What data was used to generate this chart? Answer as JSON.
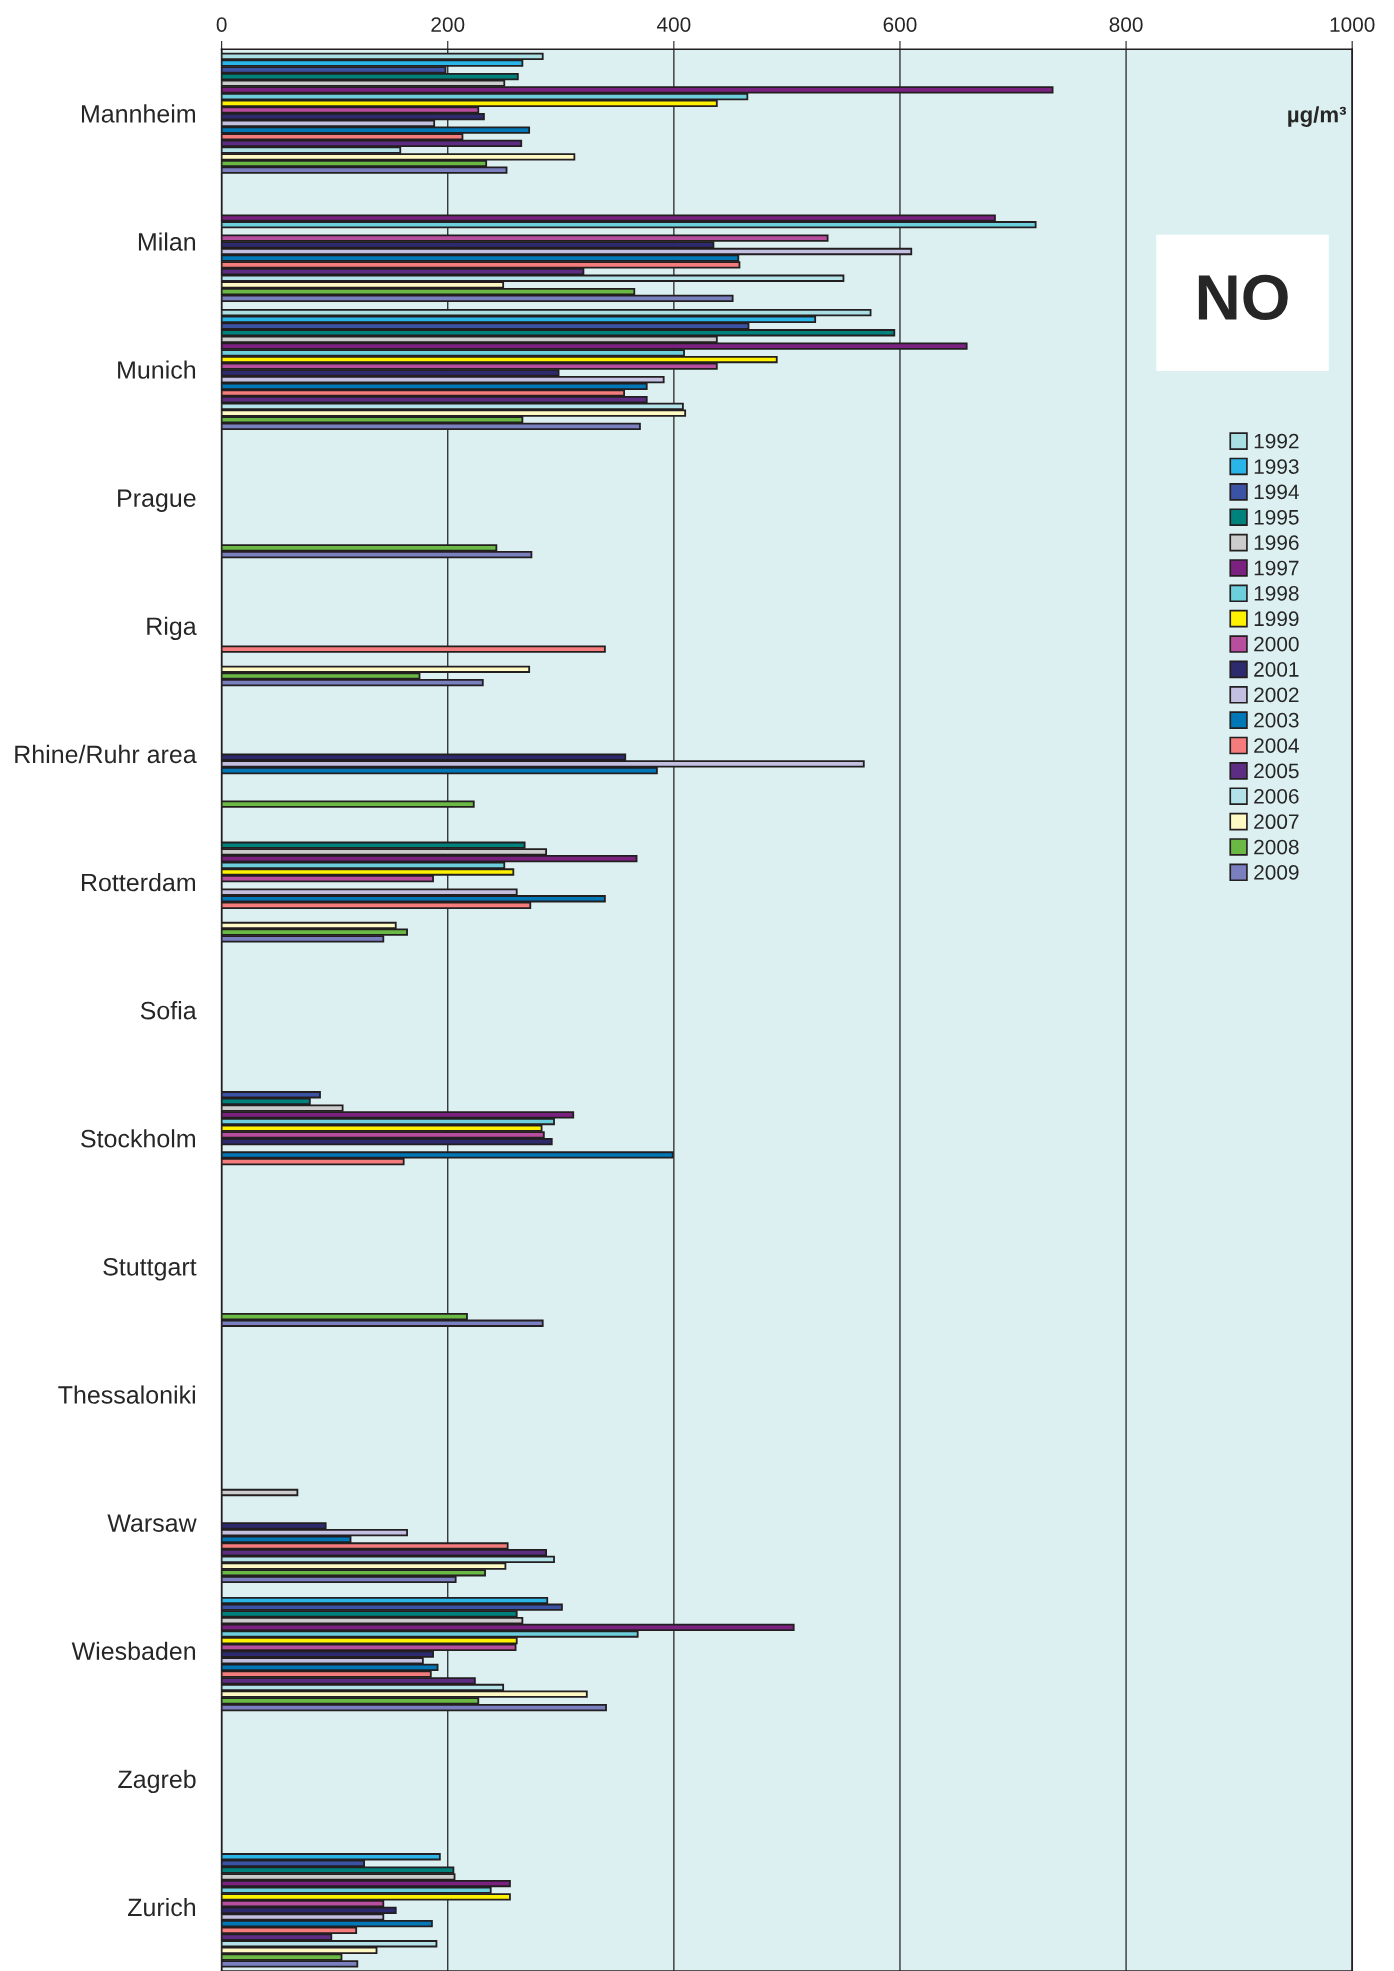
{
  "chart_data": {
    "type": "bar",
    "orientation": "horizontal",
    "title": "NO",
    "xlabel": "µg/m³",
    "categories": [
      "Mannheim",
      "Milan",
      "Munich",
      "Prague",
      "Riga",
      "Rhine/Ruhr area",
      "Rotterdam",
      "Sofia",
      "Stockholm",
      "Stuttgart",
      "Thessaloniki",
      "Warsaw",
      "Wiesbaden",
      "Zagreb",
      "Zurich"
    ],
    "xlim": [
      0,
      1000
    ],
    "xticks": [
      0,
      200,
      400,
      600,
      800,
      1000
    ],
    "grid": "x",
    "legend": "right",
    "series": [
      {
        "name": "1992",
        "color": "#a9dfe3",
        "values": [
          284,
          null,
          574,
          null,
          null,
          null,
          null,
          null,
          null,
          null,
          null,
          null,
          null,
          null,
          null
        ]
      },
      {
        "name": "1993",
        "color": "#29b5e8",
        "values": [
          266,
          null,
          525,
          null,
          null,
          null,
          null,
          null,
          null,
          null,
          null,
          null,
          288,
          null,
          193
        ]
      },
      {
        "name": "1994",
        "color": "#3a53a4",
        "values": [
          198,
          null,
          466,
          null,
          null,
          null,
          null,
          null,
          87,
          null,
          null,
          null,
          301,
          null,
          126
        ]
      },
      {
        "name": "1995",
        "color": "#00827c",
        "values": [
          262,
          null,
          595,
          null,
          null,
          null,
          268,
          null,
          78,
          null,
          null,
          null,
          261,
          null,
          205
        ]
      },
      {
        "name": "1996",
        "color": "#cccccc",
        "values": [
          250,
          null,
          438,
          null,
          null,
          null,
          287,
          null,
          107,
          null,
          null,
          67,
          266,
          null,
          206
        ]
      },
      {
        "name": "1997",
        "color": "#7b2281",
        "values": [
          735,
          684,
          659,
          null,
          null,
          null,
          367,
          null,
          311,
          null,
          null,
          null,
          506,
          null,
          255
        ]
      },
      {
        "name": "1998",
        "color": "#6ecfdc",
        "values": [
          465,
          720,
          409,
          null,
          null,
          null,
          250,
          null,
          294,
          null,
          null,
          null,
          368,
          null,
          238
        ]
      },
      {
        "name": "1999",
        "color": "#fff200",
        "values": [
          438,
          null,
          491,
          null,
          null,
          null,
          258,
          null,
          283,
          null,
          null,
          null,
          261,
          null,
          255
        ]
      },
      {
        "name": "2000",
        "color": "#b84e9e",
        "values": [
          227,
          536,
          438,
          null,
          null,
          null,
          187,
          null,
          285,
          null,
          null,
          null,
          260,
          null,
          143
        ]
      },
      {
        "name": "2001",
        "color": "#2e2a6e",
        "values": [
          232,
          435,
          298,
          null,
          null,
          357,
          null,
          null,
          292,
          null,
          null,
          92,
          187,
          null,
          154
        ]
      },
      {
        "name": "2002",
        "color": "#c2bfe0",
        "values": [
          188,
          610,
          391,
          null,
          null,
          568,
          261,
          null,
          null,
          null,
          null,
          164,
          178,
          null,
          143
        ]
      },
      {
        "name": "2003",
        "color": "#0077b6",
        "values": [
          272,
          457,
          376,
          null,
          null,
          385,
          339,
          null,
          399,
          null,
          null,
          114,
          191,
          null,
          186
        ]
      },
      {
        "name": "2004",
        "color": "#f47c7c",
        "values": [
          213,
          458,
          356,
          null,
          339,
          null,
          273,
          null,
          161,
          null,
          null,
          253,
          185,
          null,
          119
        ]
      },
      {
        "name": "2005",
        "color": "#5c2d83",
        "values": [
          265,
          320,
          376,
          null,
          null,
          null,
          null,
          null,
          null,
          null,
          null,
          287,
          224,
          null,
          97
        ]
      },
      {
        "name": "2006",
        "color": "#b3e3e8",
        "values": [
          158,
          550,
          408,
          null,
          null,
          null,
          null,
          null,
          null,
          null,
          null,
          294,
          249,
          null,
          190
        ]
      },
      {
        "name": "2007",
        "color": "#fff9c4",
        "values": [
          312,
          249,
          410,
          null,
          272,
          null,
          154,
          null,
          null,
          null,
          null,
          251,
          323,
          null,
          137
        ]
      },
      {
        "name": "2008",
        "color": "#6ab945",
        "values": [
          234,
          365,
          266,
          243,
          175,
          223,
          164,
          null,
          null,
          217,
          null,
          233,
          227,
          null,
          106
        ]
      },
      {
        "name": "2009",
        "color": "#7a7fc0",
        "values": [
          252,
          452,
          370,
          274,
          231,
          null,
          143,
          null,
          null,
          284,
          null,
          207,
          340,
          null,
          120
        ]
      }
    ]
  }
}
